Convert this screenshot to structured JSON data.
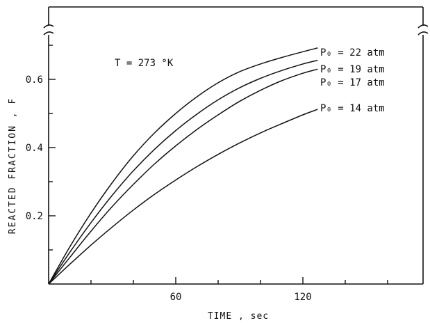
{
  "chart_data": {
    "type": "line",
    "title": "",
    "xlabel": "TIME , sec",
    "ylabel": "REACTED FRACTION , F",
    "xlim": [
      0,
      170
    ],
    "ylim": [
      0,
      0.76
    ],
    "x_ticks": [
      60,
      120
    ],
    "y_ticks": [
      0.2,
      0.4,
      0.6
    ],
    "x_tick_labels": [
      "60",
      "120"
    ],
    "y_tick_labels": [
      "0.2",
      "0.4",
      "0.6"
    ],
    "annotation": "T = 273 °K",
    "grid": false,
    "series": [
      {
        "name": "P₀ = 22 atm",
        "x": [
          0,
          10,
          20,
          30,
          40,
          50,
          60,
          70,
          80,
          90,
          100,
          110,
          120,
          127
        ],
        "y": [
          0,
          0.109,
          0.208,
          0.297,
          0.376,
          0.443,
          0.5,
          0.549,
          0.59,
          0.622,
          0.645,
          0.664,
          0.681,
          0.692
        ]
      },
      {
        "name": "P₀ = 19 atm",
        "x": [
          0,
          10,
          20,
          30,
          40,
          50,
          60,
          70,
          80,
          90,
          100,
          110,
          120,
          127
        ],
        "y": [
          0,
          0.093,
          0.18,
          0.26,
          0.332,
          0.395,
          0.45,
          0.498,
          0.54,
          0.575,
          0.603,
          0.626,
          0.645,
          0.656
        ]
      },
      {
        "name": "P₀ = 17 atm",
        "x": [
          0,
          10,
          20,
          30,
          40,
          50,
          60,
          70,
          80,
          90,
          100,
          110,
          120,
          127
        ],
        "y": [
          0,
          0.078,
          0.155,
          0.227,
          0.292,
          0.352,
          0.405,
          0.453,
          0.496,
          0.535,
          0.568,
          0.596,
          0.618,
          0.63
        ]
      },
      {
        "name": "P₀ = 14 atm",
        "x": [
          0,
          10,
          20,
          30,
          40,
          50,
          60,
          70,
          80,
          90,
          100,
          110,
          120,
          127
        ],
        "y": [
          0,
          0.058,
          0.114,
          0.167,
          0.217,
          0.263,
          0.305,
          0.344,
          0.38,
          0.413,
          0.443,
          0.47,
          0.496,
          0.512
        ]
      }
    ]
  }
}
